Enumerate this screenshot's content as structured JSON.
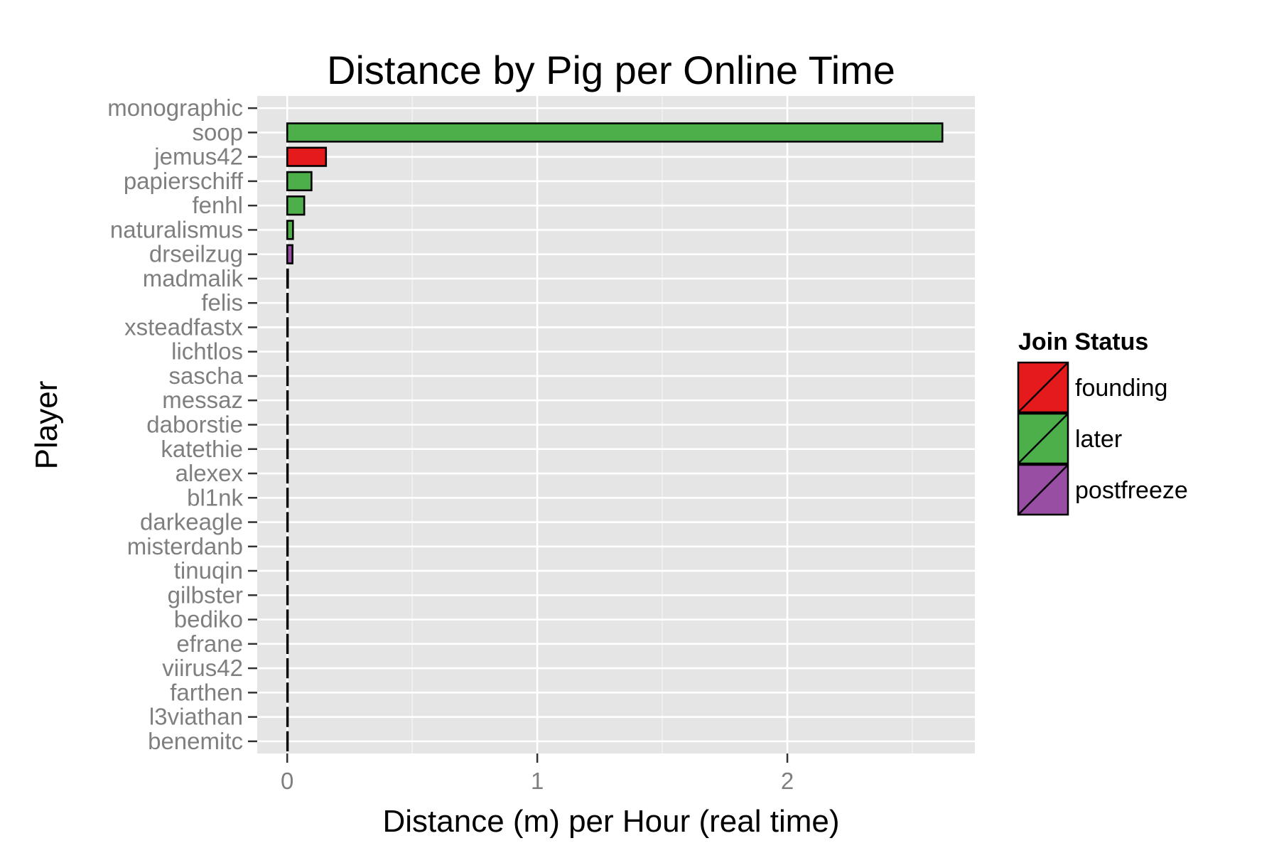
{
  "chart_data": {
    "type": "bar",
    "orientation": "horizontal",
    "title": "Distance by Pig per Online Time",
    "xlabel": "Distance (m) per Hour (real time)",
    "ylabel": "Player",
    "xlim": [
      -0.12,
      2.75
    ],
    "x_ticks": [
      0,
      1,
      2
    ],
    "grid": true,
    "legend": {
      "title": "Join Status",
      "placement": "right",
      "entries": [
        {
          "name": "founding",
          "color": "#E41A1C"
        },
        {
          "name": "later",
          "color": "#4DAF4A"
        },
        {
          "name": "postfreeze",
          "color": "#984EA3"
        }
      ]
    },
    "categories": [
      "monographic",
      "soop",
      "jemus42",
      "papierschiff",
      "fenhl",
      "naturalismus",
      "drseilzug",
      "madmalik",
      "felis",
      "xsteadfastx",
      "lichtlos",
      "sascha",
      "messaz",
      "daborstie",
      "katethie",
      "alexex",
      "bl1nk",
      "darkeagle",
      "misterdanb",
      "tinuqin",
      "gilbster",
      "bediko",
      "efrane",
      "viirus42",
      "farthen",
      "l3viathan",
      "benemitc"
    ],
    "values": [
      0,
      2.62,
      0.155,
      0.097,
      0.068,
      0.023,
      0.021,
      0.003,
      0.002,
      0.002,
      0.002,
      0.002,
      0.002,
      0.002,
      0.002,
      0.002,
      0.002,
      0.002,
      0.002,
      0.002,
      0.002,
      0.002,
      0.002,
      0.002,
      0.002,
      0.002,
      0.002
    ],
    "status": [
      "later",
      "later",
      "founding",
      "later",
      "later",
      "later",
      "postfreeze",
      "later",
      "later",
      "later",
      "later",
      "later",
      "later",
      "later",
      "later",
      "later",
      "later",
      "later",
      "later",
      "later",
      "later",
      "later",
      "later",
      "later",
      "later",
      "later",
      "later"
    ]
  },
  "colors": {
    "panel_background": "#E5E5E5",
    "grid": "#FFFFFF",
    "bar_outline": "#000000",
    "tick_text": "#7F7F7F"
  }
}
